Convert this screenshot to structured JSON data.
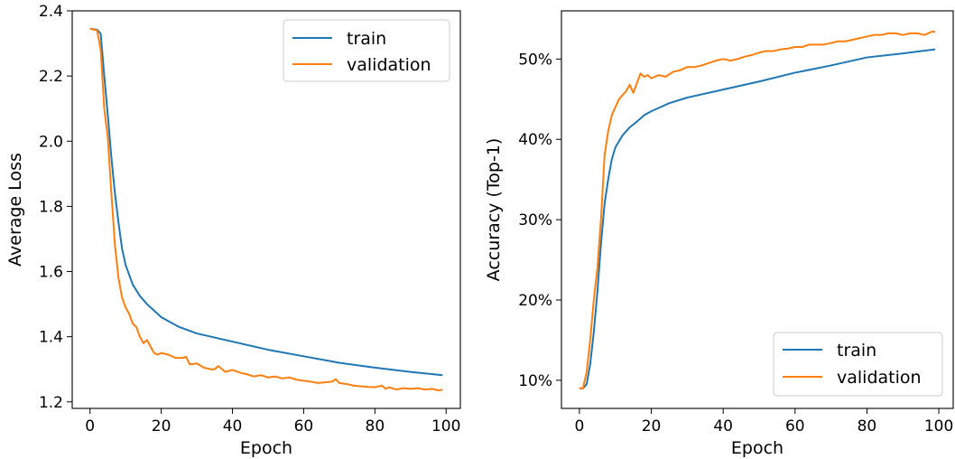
{
  "chart_data": [
    {
      "type": "line",
      "title": "",
      "xlabel": "Epoch",
      "ylabel": "Average Loss",
      "xlim": [
        -5,
        104
      ],
      "ylim": [
        1.18,
        2.4
      ],
      "xticks": [
        0,
        20,
        40,
        60,
        80,
        100
      ],
      "xtick_labels": [
        "0",
        "20",
        "40",
        "60",
        "80",
        "100"
      ],
      "yticks": [
        1.2,
        1.4,
        1.6,
        1.8,
        2.0,
        2.2,
        2.4
      ],
      "ytick_labels": [
        "1.2",
        "1.4",
        "1.6",
        "1.8",
        "2.0",
        "2.2",
        "2.4"
      ],
      "grid": false,
      "legend_position": "top-right",
      "series": [
        {
          "name": "train",
          "color": "#1f77b4",
          "x": [
            0,
            2,
            3,
            4,
            5,
            6,
            7,
            8,
            9,
            10,
            12,
            14,
            16,
            18,
            20,
            25,
            30,
            40,
            50,
            60,
            70,
            80,
            90,
            99
          ],
          "y": [
            2.345,
            2.342,
            2.33,
            2.2,
            2.08,
            1.95,
            1.84,
            1.75,
            1.67,
            1.62,
            1.56,
            1.525,
            1.5,
            1.48,
            1.46,
            1.43,
            1.41,
            1.385,
            1.36,
            1.34,
            1.32,
            1.305,
            1.292,
            1.282
          ]
        },
        {
          "name": "validation",
          "color": "#ff7f0e",
          "x": [
            0,
            2,
            3,
            4,
            5,
            6,
            7,
            8,
            9,
            10,
            11,
            12,
            13,
            14,
            15,
            16,
            17,
            18,
            19,
            20,
            22,
            24,
            26,
            27,
            28,
            30,
            32,
            34,
            35,
            36,
            38,
            40,
            42,
            44,
            46,
            48,
            50,
            52,
            54,
            56,
            58,
            60,
            62,
            64,
            66,
            68,
            69,
            70,
            72,
            74,
            76,
            78,
            80,
            82,
            83,
            84,
            86,
            88,
            90,
            92,
            94,
            96,
            98,
            99
          ],
          "y": [
            2.345,
            2.34,
            2.28,
            2.1,
            2.01,
            1.84,
            1.68,
            1.58,
            1.52,
            1.49,
            1.47,
            1.44,
            1.43,
            1.4,
            1.38,
            1.39,
            1.37,
            1.35,
            1.345,
            1.35,
            1.345,
            1.335,
            1.335,
            1.338,
            1.315,
            1.318,
            1.305,
            1.3,
            1.3,
            1.31,
            1.292,
            1.298,
            1.29,
            1.285,
            1.278,
            1.282,
            1.275,
            1.278,
            1.272,
            1.275,
            1.268,
            1.265,
            1.262,
            1.258,
            1.26,
            1.262,
            1.27,
            1.258,
            1.255,
            1.25,
            1.248,
            1.246,
            1.245,
            1.25,
            1.24,
            1.245,
            1.238,
            1.242,
            1.24,
            1.242,
            1.238,
            1.24,
            1.235,
            1.238
          ]
        }
      ]
    },
    {
      "type": "line",
      "title": "",
      "xlabel": "Epoch",
      "ylabel": "Accuracy (Top-1)",
      "xlim": [
        -5,
        104
      ],
      "ylim": [
        0.065,
        0.56
      ],
      "xticks": [
        0,
        20,
        40,
        60,
        80,
        100
      ],
      "xtick_labels": [
        "0",
        "20",
        "40",
        "60",
        "80",
        "100"
      ],
      "yticks": [
        0.1,
        0.2,
        0.3,
        0.4,
        0.5
      ],
      "ytick_labels": [
        "10%",
        "20%",
        "30%",
        "40%",
        "50%"
      ],
      "grid": false,
      "legend_position": "bottom-right",
      "series": [
        {
          "name": "train",
          "color": "#1f77b4",
          "x": [
            0,
            1,
            2,
            3,
            4,
            5,
            6,
            7,
            8,
            9,
            10,
            12,
            14,
            16,
            18,
            20,
            25,
            30,
            40,
            50,
            60,
            70,
            80,
            90,
            99
          ],
          "y": [
            0.09,
            0.09,
            0.095,
            0.12,
            0.16,
            0.21,
            0.27,
            0.32,
            0.35,
            0.375,
            0.39,
            0.405,
            0.415,
            0.422,
            0.43,
            0.435,
            0.445,
            0.452,
            0.462,
            0.472,
            0.483,
            0.492,
            0.502,
            0.507,
            0.512
          ]
        },
        {
          "name": "validation",
          "color": "#ff7f0e",
          "x": [
            0,
            1,
            2,
            3,
            4,
            5,
            6,
            7,
            8,
            9,
            10,
            11,
            12,
            13,
            14,
            15,
            16,
            17,
            18,
            19,
            20,
            22,
            24,
            26,
            28,
            30,
            32,
            34,
            36,
            38,
            40,
            42,
            44,
            46,
            48,
            50,
            52,
            54,
            56,
            58,
            60,
            62,
            64,
            66,
            68,
            70,
            72,
            74,
            76,
            78,
            80,
            82,
            84,
            86,
            88,
            90,
            92,
            94,
            96,
            98,
            99
          ],
          "y": [
            0.09,
            0.09,
            0.11,
            0.15,
            0.2,
            0.24,
            0.3,
            0.38,
            0.41,
            0.43,
            0.44,
            0.45,
            0.455,
            0.46,
            0.468,
            0.458,
            0.47,
            0.482,
            0.478,
            0.48,
            0.476,
            0.48,
            0.478,
            0.484,
            0.486,
            0.49,
            0.49,
            0.492,
            0.495,
            0.498,
            0.5,
            0.498,
            0.5,
            0.503,
            0.505,
            0.508,
            0.51,
            0.51,
            0.512,
            0.513,
            0.515,
            0.515,
            0.518,
            0.518,
            0.518,
            0.52,
            0.522,
            0.522,
            0.524,
            0.526,
            0.528,
            0.53,
            0.53,
            0.532,
            0.532,
            0.53,
            0.532,
            0.532,
            0.53,
            0.534,
            0.534
          ]
        }
      ]
    }
  ]
}
